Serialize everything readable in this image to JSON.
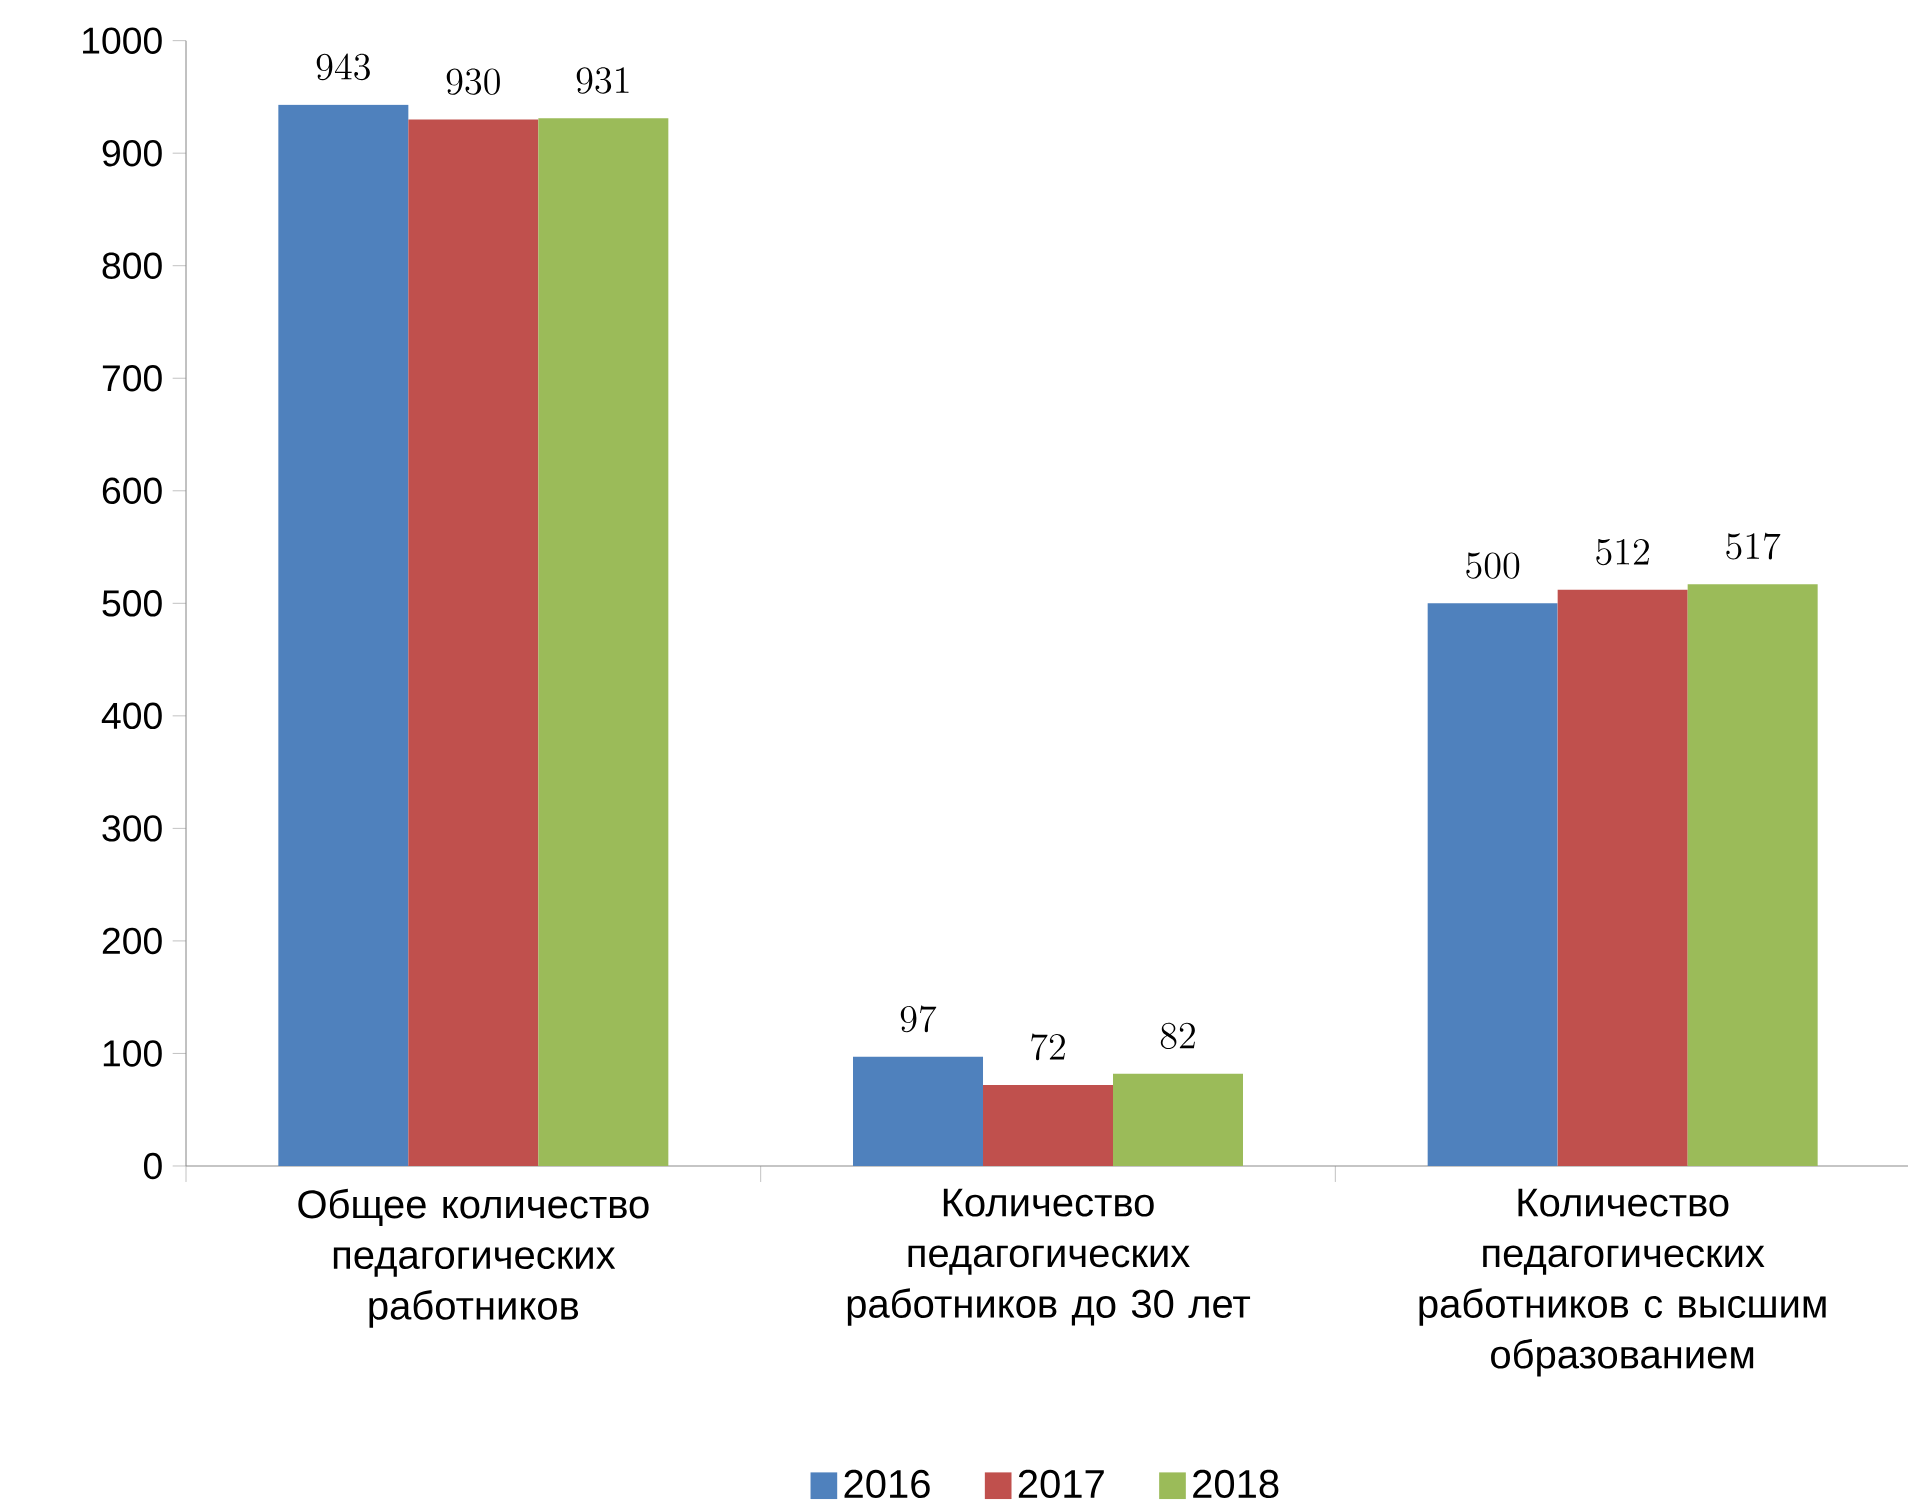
{
  "chart_data": {
    "type": "bar",
    "categories": [
      "Общее количество педагогических работников",
      "Количество педагогических работников до 30 лет",
      "Количество педагогических работников с высшим образованием"
    ],
    "series": [
      {
        "name": "2016",
        "color": "#4f81bd",
        "values": [
          943,
          97,
          500
        ]
      },
      {
        "name": "2017",
        "color": "#c0504d",
        "values": [
          930,
          72,
          512
        ]
      },
      {
        "name": "2018",
        "color": "#9bbb59",
        "values": [
          931,
          82,
          517
        ]
      }
    ],
    "ylim": [
      0,
      1000
    ],
    "yticks": [
      0,
      100,
      200,
      300,
      400,
      500,
      600,
      700,
      800,
      900,
      1000
    ],
    "grid": false,
    "legend": "bottom",
    "data_labels": true
  }
}
